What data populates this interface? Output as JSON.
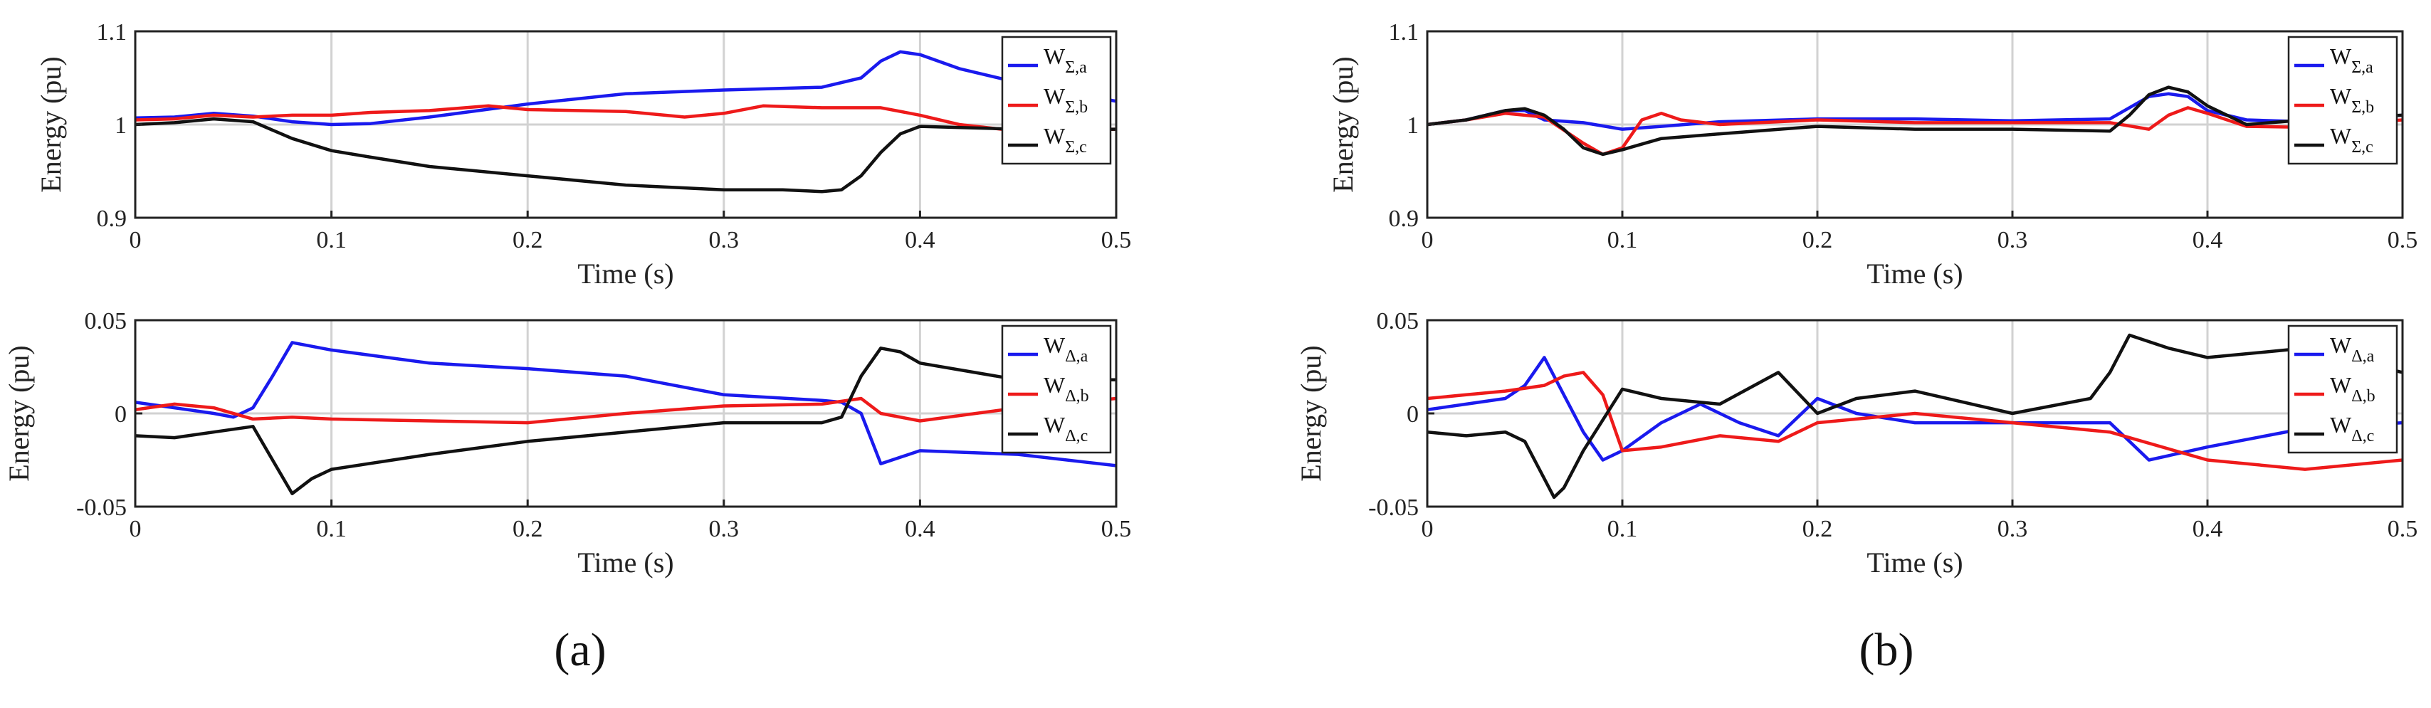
{
  "panels": [
    {
      "id": "a",
      "label": "(a)"
    },
    {
      "id": "b",
      "label": "(b)"
    }
  ],
  "colors": {
    "phase_a": "#1a1aee",
    "phase_b": "#ee1a1a",
    "phase_c": "#111111"
  },
  "chart_data": [
    {
      "type": "line",
      "id": "a-sum",
      "xlabel": "Time (s)",
      "ylabel": "Energy (pu)",
      "xlim": [
        0,
        0.5
      ],
      "ylim": [
        0.9,
        1.1
      ],
      "xticks": [
        0,
        0.1,
        0.2,
        0.3,
        0.4,
        0.5
      ],
      "xticklabels": [
        "0",
        "0.1",
        "0.2",
        "0.3",
        "0.4",
        "0.5"
      ],
      "yticks": [
        0.9,
        1,
        1.1
      ],
      "yticklabels": [
        "0.9",
        "1",
        "1.1"
      ],
      "legend": "top-right",
      "series": [
        {
          "name": "W",
          "sub": "Σ,a",
          "color": "#1a1aee",
          "x": [
            0,
            0.02,
            0.04,
            0.06,
            0.08,
            0.1,
            0.12,
            0.15,
            0.2,
            0.25,
            0.3,
            0.35,
            0.37,
            0.38,
            0.39,
            0.4,
            0.42,
            0.45,
            0.5
          ],
          "y": [
            1.007,
            1.008,
            1.012,
            1.009,
            1.003,
            1.0,
            1.001,
            1.008,
            1.022,
            1.033,
            1.037,
            1.04,
            1.05,
            1.068,
            1.078,
            1.075,
            1.06,
            1.045,
            1.025
          ]
        },
        {
          "name": "W",
          "sub": "Σ,b",
          "color": "#ee1a1a",
          "x": [
            0,
            0.02,
            0.04,
            0.06,
            0.08,
            0.1,
            0.12,
            0.15,
            0.18,
            0.2,
            0.25,
            0.28,
            0.3,
            0.32,
            0.35,
            0.38,
            0.4,
            0.42,
            0.45,
            0.5
          ],
          "y": [
            1.005,
            1.006,
            1.01,
            1.008,
            1.01,
            1.01,
            1.013,
            1.015,
            1.02,
            1.016,
            1.014,
            1.008,
            1.012,
            1.02,
            1.018,
            1.018,
            1.01,
            1.0,
            0.993,
            0.995
          ]
        },
        {
          "name": "W",
          "sub": "Σ,c",
          "color": "#111111",
          "x": [
            0,
            0.02,
            0.04,
            0.06,
            0.08,
            0.1,
            0.12,
            0.15,
            0.2,
            0.25,
            0.3,
            0.33,
            0.35,
            0.36,
            0.37,
            0.38,
            0.39,
            0.4,
            0.45,
            0.5
          ],
          "y": [
            1.0,
            1.002,
            1.006,
            1.003,
            0.985,
            0.972,
            0.965,
            0.955,
            0.945,
            0.935,
            0.93,
            0.93,
            0.928,
            0.93,
            0.945,
            0.97,
            0.99,
            0.998,
            0.995,
            0.995
          ]
        }
      ]
    },
    {
      "type": "line",
      "id": "a-delta",
      "xlabel": "Time (s)",
      "ylabel": "Energy (pu)",
      "xlim": [
        0,
        0.5
      ],
      "ylim": [
        -0.05,
        0.05
      ],
      "xticks": [
        0,
        0.1,
        0.2,
        0.3,
        0.4,
        0.5
      ],
      "xticklabels": [
        "0",
        "0.1",
        "0.2",
        "0.3",
        "0.4",
        "0.5"
      ],
      "yticks": [
        -0.05,
        0,
        0.05
      ],
      "yticklabels": [
        "-0.05",
        "0",
        "0.05"
      ],
      "legend": "top-right",
      "series": [
        {
          "name": "W",
          "sub": "Δ,a",
          "color": "#1a1aee",
          "x": [
            0,
            0.02,
            0.04,
            0.05,
            0.06,
            0.07,
            0.08,
            0.1,
            0.15,
            0.2,
            0.25,
            0.3,
            0.35,
            0.36,
            0.37,
            0.38,
            0.4,
            0.45,
            0.5
          ],
          "y": [
            0.006,
            0.003,
            0.0,
            -0.002,
            0.003,
            0.02,
            0.038,
            0.034,
            0.027,
            0.024,
            0.02,
            0.01,
            0.007,
            0.006,
            0.0,
            -0.027,
            -0.02,
            -0.022,
            -0.028
          ]
        },
        {
          "name": "W",
          "sub": "Δ,b",
          "color": "#ee1a1a",
          "x": [
            0,
            0.02,
            0.04,
            0.06,
            0.08,
            0.1,
            0.15,
            0.2,
            0.25,
            0.3,
            0.35,
            0.37,
            0.38,
            0.4,
            0.45,
            0.5
          ],
          "y": [
            0.002,
            0.005,
            0.003,
            -0.003,
            -0.002,
            -0.003,
            -0.004,
            -0.005,
            0.0,
            0.004,
            0.005,
            0.008,
            0.0,
            -0.004,
            0.003,
            0.008
          ]
        },
        {
          "name": "W",
          "sub": "Δ,c",
          "color": "#111111",
          "x": [
            0,
            0.02,
            0.04,
            0.06,
            0.07,
            0.08,
            0.09,
            0.1,
            0.15,
            0.2,
            0.25,
            0.3,
            0.35,
            0.36,
            0.37,
            0.38,
            0.39,
            0.4,
            0.45,
            0.5
          ],
          "y": [
            -0.012,
            -0.013,
            -0.01,
            -0.007,
            -0.025,
            -0.043,
            -0.035,
            -0.03,
            -0.022,
            -0.015,
            -0.01,
            -0.005,
            -0.005,
            -0.002,
            0.02,
            0.035,
            0.033,
            0.027,
            0.018,
            0.018
          ]
        }
      ]
    },
    {
      "type": "line",
      "id": "b-sum",
      "xlabel": "Time (s)",
      "ylabel": "Energy (pu)",
      "xlim": [
        0,
        0.5
      ],
      "ylim": [
        0.9,
        1.1
      ],
      "xticks": [
        0,
        0.1,
        0.2,
        0.3,
        0.4,
        0.5
      ],
      "xticklabels": [
        "0",
        "0.1",
        "0.2",
        "0.3",
        "0.4",
        "0.5"
      ],
      "yticks": [
        0.9,
        1,
        1.1
      ],
      "yticklabels": [
        "0.9",
        "1",
        "1.1"
      ],
      "legend": "top-right",
      "series": [
        {
          "name": "W",
          "sub": "Σ,a",
          "color": "#1a1aee",
          "x": [
            0,
            0.02,
            0.04,
            0.05,
            0.06,
            0.08,
            0.1,
            0.12,
            0.15,
            0.2,
            0.25,
            0.3,
            0.35,
            0.37,
            0.38,
            0.39,
            0.4,
            0.42,
            0.45,
            0.5
          ],
          "y": [
            1.0,
            1.005,
            1.015,
            1.015,
            1.005,
            1.002,
            0.995,
            0.998,
            1.003,
            1.006,
            1.006,
            1.004,
            1.006,
            1.03,
            1.033,
            1.03,
            1.015,
            1.005,
            1.003,
            1.01
          ]
        },
        {
          "name": "W",
          "sub": "Σ,b",
          "color": "#ee1a1a",
          "x": [
            0,
            0.02,
            0.04,
            0.06,
            0.08,
            0.09,
            0.1,
            0.11,
            0.12,
            0.13,
            0.15,
            0.2,
            0.25,
            0.3,
            0.35,
            0.37,
            0.38,
            0.39,
            0.4,
            0.42,
            0.45,
            0.5
          ],
          "y": [
            1.0,
            1.005,
            1.012,
            1.008,
            0.98,
            0.968,
            0.975,
            1.005,
            1.012,
            1.005,
            1.0,
            1.005,
            1.002,
            1.002,
            1.002,
            0.995,
            1.01,
            1.018,
            1.012,
            0.998,
            0.997,
            1.005
          ]
        },
        {
          "name": "W",
          "sub": "Σ,c",
          "color": "#111111",
          "x": [
            0,
            0.02,
            0.04,
            0.05,
            0.06,
            0.07,
            0.08,
            0.09,
            0.1,
            0.12,
            0.15,
            0.2,
            0.25,
            0.3,
            0.35,
            0.36,
            0.37,
            0.38,
            0.39,
            0.4,
            0.42,
            0.45,
            0.5
          ],
          "y": [
            1.0,
            1.005,
            1.015,
            1.017,
            1.01,
            0.995,
            0.975,
            0.968,
            0.973,
            0.985,
            0.99,
            0.998,
            0.995,
            0.995,
            0.993,
            1.01,
            1.032,
            1.04,
            1.035,
            1.02,
            1.0,
            1.005,
            1.01
          ]
        }
      ]
    },
    {
      "type": "line",
      "id": "b-delta",
      "xlabel": "Time (s)",
      "ylabel": "Energy (pu)",
      "xlim": [
        0,
        0.5
      ],
      "ylim": [
        -0.05,
        0.05
      ],
      "xticks": [
        0,
        0.1,
        0.2,
        0.3,
        0.4,
        0.5
      ],
      "xticklabels": [
        "0",
        "0.1",
        "0.2",
        "0.3",
        "0.4",
        "0.5"
      ],
      "yticks": [
        -0.05,
        0,
        0.05
      ],
      "yticklabels": [
        "-0.05",
        "0",
        "0.05"
      ],
      "legend": "top-right",
      "series": [
        {
          "name": "W",
          "sub": "Δ,a",
          "color": "#1a1aee",
          "x": [
            0,
            0.02,
            0.04,
            0.05,
            0.06,
            0.07,
            0.08,
            0.09,
            0.1,
            0.12,
            0.14,
            0.16,
            0.18,
            0.2,
            0.22,
            0.25,
            0.3,
            0.35,
            0.36,
            0.37,
            0.4,
            0.45,
            0.5
          ],
          "y": [
            0.002,
            0.005,
            0.008,
            0.015,
            0.03,
            0.01,
            -0.01,
            -0.025,
            -0.02,
            -0.005,
            0.005,
            -0.005,
            -0.012,
            0.008,
            0.0,
            -0.005,
            -0.005,
            -0.005,
            -0.015,
            -0.025,
            -0.018,
            -0.008,
            -0.005
          ]
        },
        {
          "name": "W",
          "sub": "Δ,b",
          "color": "#ee1a1a",
          "x": [
            0,
            0.02,
            0.04,
            0.06,
            0.07,
            0.08,
            0.09,
            0.1,
            0.12,
            0.15,
            0.18,
            0.2,
            0.25,
            0.3,
            0.35,
            0.4,
            0.45,
            0.5
          ],
          "y": [
            0.008,
            0.01,
            0.012,
            0.015,
            0.02,
            0.022,
            0.01,
            -0.02,
            -0.018,
            -0.012,
            -0.015,
            -0.005,
            0.0,
            -0.005,
            -0.01,
            -0.025,
            -0.03,
            -0.025
          ]
        },
        {
          "name": "W",
          "sub": "Δ,c",
          "color": "#111111",
          "x": [
            0,
            0.02,
            0.04,
            0.05,
            0.06,
            0.065,
            0.07,
            0.08,
            0.1,
            0.12,
            0.15,
            0.18,
            0.2,
            0.22,
            0.25,
            0.3,
            0.34,
            0.35,
            0.36,
            0.38,
            0.4,
            0.45,
            0.5
          ],
          "y": [
            -0.01,
            -0.012,
            -0.01,
            -0.015,
            -0.035,
            -0.045,
            -0.04,
            -0.02,
            0.013,
            0.008,
            0.005,
            0.022,
            0.0,
            0.008,
            0.012,
            0.0,
            0.008,
            0.022,
            0.042,
            0.035,
            0.03,
            0.035,
            0.022
          ]
        }
      ]
    }
  ]
}
